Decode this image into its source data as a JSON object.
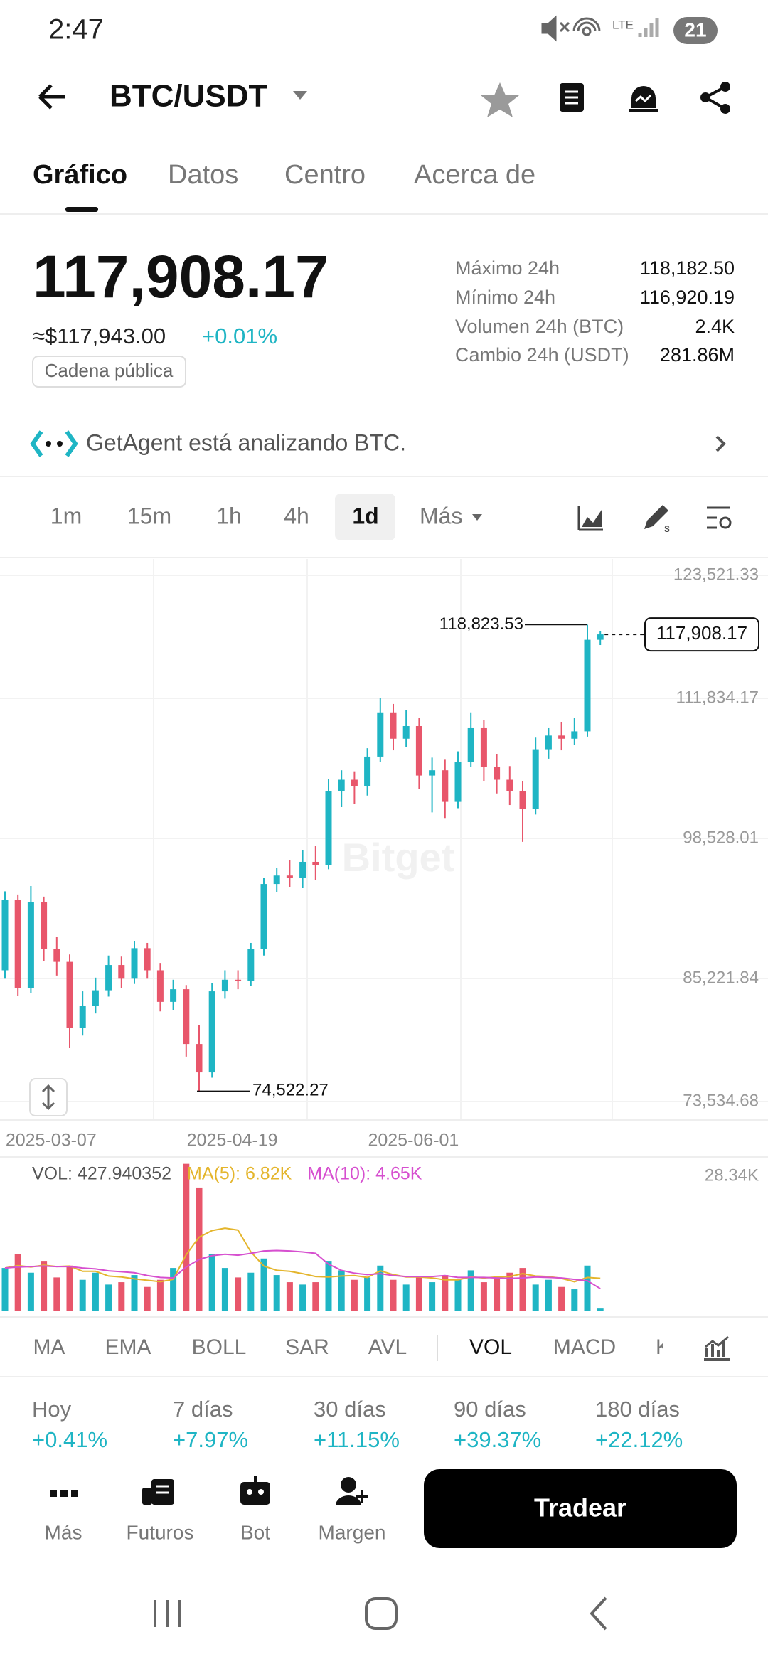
{
  "status_bar": {
    "time": "2:47",
    "network": "LTE",
    "battery": "21"
  },
  "header": {
    "title": "BTC/USDT"
  },
  "tabs": [
    "Gráfico",
    "Datos",
    "Centro",
    "Acerca de"
  ],
  "ticker": {
    "price": "117,908.17",
    "usd": "≈$117,943.00",
    "change": "+0.01%",
    "chip": "Cadena pública"
  },
  "stats": [
    {
      "label": "Máximo 24h",
      "value": "118,182.50"
    },
    {
      "label": "Mínimo 24h",
      "value": "116,920.19"
    },
    {
      "label": "Volumen 24h (BTC)",
      "value": "2.4K"
    },
    {
      "label": "Cambio 24h (USDT)",
      "value": "281.86M"
    }
  ],
  "agent": {
    "text": "GetAgent está analizando BTC."
  },
  "timeframes": [
    "1m",
    "15m",
    "1h",
    "4h",
    "1d",
    "Más"
  ],
  "indicators": [
    "MA",
    "EMA",
    "BOLL",
    "SAR",
    "AVL",
    "VOL",
    "MACD",
    "K"
  ],
  "periods": [
    {
      "label": "Hoy",
      "value": "+0.41%"
    },
    {
      "label": "7 días",
      "value": "+7.97%"
    },
    {
      "label": "30 días",
      "value": "+11.15%"
    },
    {
      "label": "90 días",
      "value": "+39.37%"
    },
    {
      "label": "180 días",
      "value": "+22.12%"
    }
  ],
  "nav": [
    "Más",
    "Futuros",
    "Bot",
    "Margen"
  ],
  "action": "Tradear",
  "chart_data": [
    {
      "type": "candlestick",
      "watermark": "Bitget",
      "up_color": "#1fb5c4",
      "down_color": "#e8566b",
      "grid": true,
      "categories": [
        null,
        null,
        null,
        null,
        "2025-03-07",
        null,
        null,
        null,
        null,
        null,
        null,
        null,
        null,
        null,
        null,
        null,
        null,
        null,
        "2025-04-19",
        null,
        null,
        null,
        null,
        null,
        null,
        null,
        null,
        null,
        null,
        null,
        null,
        null,
        "2025-06-01",
        null,
        null,
        null,
        null,
        null,
        null,
        null,
        null,
        null,
        null,
        null,
        null,
        null,
        null
      ],
      "open": [
        86000,
        92700,
        84300,
        92500,
        88000,
        86800,
        80500,
        82600,
        84100,
        86500,
        85200,
        88100,
        86000,
        83000,
        84200,
        79000,
        76300,
        84000,
        85100,
        85000,
        88000,
        94200,
        95000,
        94800,
        96300,
        96000,
        103000,
        104100,
        103500,
        106300,
        110500,
        108000,
        109200,
        104500,
        105000,
        102000,
        105800,
        109000,
        105300,
        104100,
        103000,
        101300,
        107000,
        108300,
        108000,
        108700,
        117400
      ],
      "high": [
        93500,
        93200,
        94000,
        93000,
        89200,
        87500,
        84000,
        85300,
        87400,
        87300,
        88800,
        88600,
        86700,
        85100,
        84600,
        80800,
        84800,
        86000,
        86000,
        88600,
        94800,
        95700,
        96500,
        97400,
        97800,
        104200,
        105000,
        104900,
        107100,
        111900,
        111300,
        110700,
        110000,
        106200,
        106000,
        106800,
        110500,
        109800,
        106500,
        105400,
        104000,
        108100,
        109000,
        109600,
        110000,
        118823.53,
        118200
      ],
      "low": [
        85200,
        83600,
        83800,
        86900,
        85500,
        78600,
        79800,
        81900,
        83500,
        84300,
        84700,
        85200,
        82100,
        82200,
        77800,
        74522.27,
        75800,
        83300,
        84200,
        84500,
        87400,
        93400,
        93900,
        93800,
        94600,
        95600,
        101500,
        101800,
        102600,
        105800,
        106900,
        107200,
        103200,
        101000,
        100400,
        101400,
        105300,
        104000,
        102800,
        101700,
        98200,
        100800,
        106100,
        106900,
        107400,
        108200,
        116900
      ],
      "close": [
        92700,
        84300,
        92500,
        88000,
        86800,
        80500,
        82600,
        84100,
        86500,
        85200,
        88100,
        86000,
        83000,
        84200,
        79000,
        76300,
        84000,
        85100,
        85000,
        88000,
        94200,
        95000,
        94800,
        96300,
        96000,
        103000,
        104100,
        103500,
        106300,
        110500,
        108000,
        109200,
        104500,
        105000,
        102000,
        105800,
        109000,
        105300,
        104100,
        103000,
        101300,
        107000,
        108300,
        108000,
        108700,
        117400,
        117908.17
      ],
      "ylim": [
        73534.68,
        123521.33
      ],
      "yticks": [
        {
          "value": 123521.33,
          "label": "123,521.33"
        },
        {
          "value": 111834.17,
          "label": "111,834.17"
        },
        {
          "value": 98528.01,
          "label": "98,528.01"
        },
        {
          "value": 85221.84,
          "label": "85,221.84"
        },
        {
          "value": 73534.68,
          "label": "73,534.68"
        }
      ],
      "max_label": {
        "value": 118823.53,
        "label": "118,823.53"
      },
      "min_label": {
        "value": 74522.27,
        "label": "74,522.27"
      },
      "last_price": {
        "value": 117908.17,
        "label": "117,908.17"
      }
    },
    {
      "type": "bar",
      "title": "VOL: 427.940352",
      "values": [
        9000,
        12000,
        8000,
        10500,
        7000,
        9500,
        6500,
        8000,
        5500,
        6000,
        7500,
        5000,
        6500,
        9000,
        31000,
        26000,
        12000,
        9000,
        7000,
        8000,
        11000,
        7500,
        6000,
        5500,
        6000,
        10500,
        8500,
        6500,
        7000,
        9500,
        6500,
        5500,
        7000,
        6000,
        7500,
        6500,
        8500,
        6000,
        7000,
        8000,
        9000,
        5500,
        6500,
        5000,
        4500,
        9500,
        427.940352
      ],
      "series": [
        {
          "name": "MA(5): 6.82K",
          "color": "#e4b52c",
          "values": [
            9000,
            9500,
            9200,
            9600,
            9300,
            9400,
            8300,
            8300,
            7300,
            7100,
            6700,
            6400,
            6100,
            6600,
            11800,
            15500,
            16900,
            17400,
            17000,
            12400,
            9400,
            8500,
            8300,
            7800,
            7200,
            7100,
            7300,
            7400,
            7000,
            8400,
            7600,
            7100,
            7100,
            6900,
            6500,
            6500,
            7100,
            6900,
            7100,
            7200,
            7800,
            7300,
            7200,
            6800,
            6100,
            7000,
            6820
          ]
        },
        {
          "name": "MA(10): 4.65K",
          "color": "#d64fcf",
          "values": [
            9000,
            9200,
            9300,
            9400,
            9300,
            9300,
            9000,
            8800,
            8400,
            8200,
            8000,
            7400,
            7000,
            6900,
            9200,
            10800,
            11600,
            11900,
            11700,
            12100,
            12600,
            12700,
            12600,
            12400,
            12100,
            9800,
            8500,
            7900,
            7600,
            7800,
            7400,
            7200,
            7200,
            7200,
            7400,
            7000,
            7000,
            7000,
            6900,
            6800,
            6900,
            7100,
            7000,
            6900,
            6600,
            6300,
            4650
          ]
        }
      ],
      "ylim": [
        0,
        32000
      ],
      "yticks": [
        {
          "value": 28340,
          "label": "28.34K"
        }
      ]
    }
  ]
}
